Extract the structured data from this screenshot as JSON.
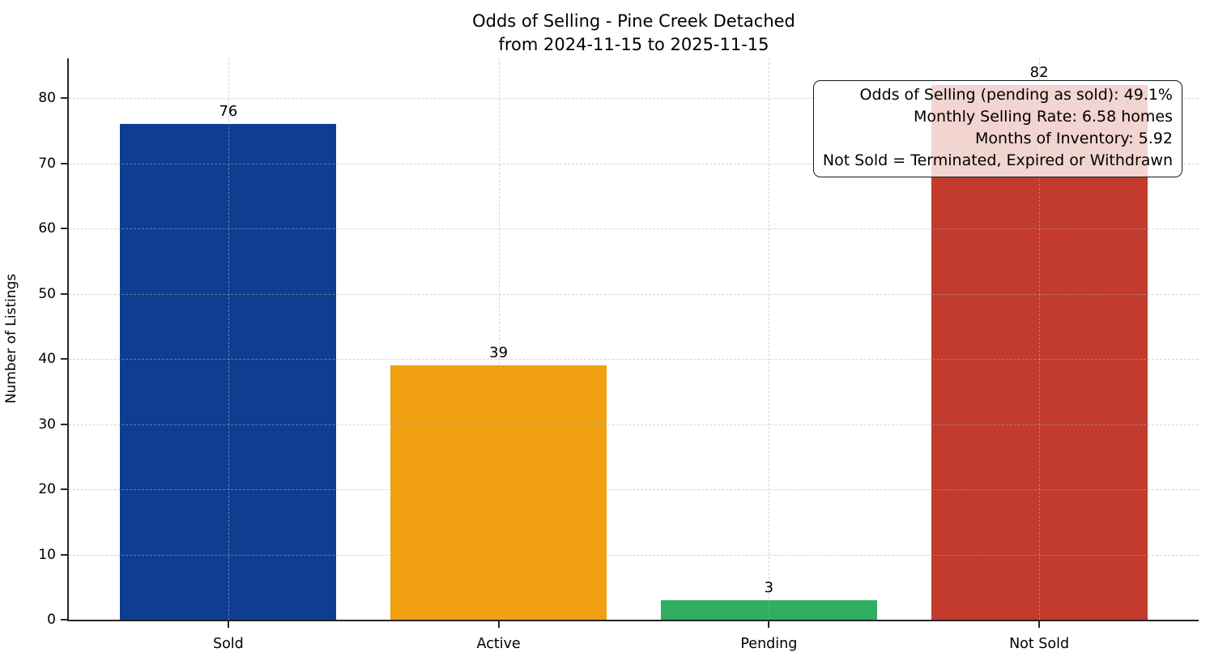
{
  "chart_data": {
    "type": "bar",
    "title": "Odds of Selling - Pine Creek Detached",
    "subtitle": "from 2024-11-15 to 2025-11-15",
    "categories": [
      "Sold",
      "Active",
      "Pending",
      "Not Sold"
    ],
    "values": [
      76,
      39,
      3,
      82
    ],
    "bar_colors": [
      "#0e3d91",
      "#f0a010",
      "#2fae60",
      "#c23b2c"
    ],
    "xlabel": "",
    "ylabel": "Number of Listings",
    "ylim": [
      0,
      86.1
    ],
    "yticks": [
      0,
      10,
      20,
      30,
      40,
      50,
      60,
      70,
      80
    ],
    "grid": "horizontal and vertical, light gray dashed, drawn over bars",
    "legend": "none",
    "annotation": {
      "position": "top-right",
      "lines": [
        "Odds of Selling (pending as sold): 49.1%",
        "Monthly Selling Rate: 6.58 homes",
        "Months of Inventory: 5.92",
        "Not Sold = Terminated, Expired or Withdrawn"
      ]
    }
  }
}
